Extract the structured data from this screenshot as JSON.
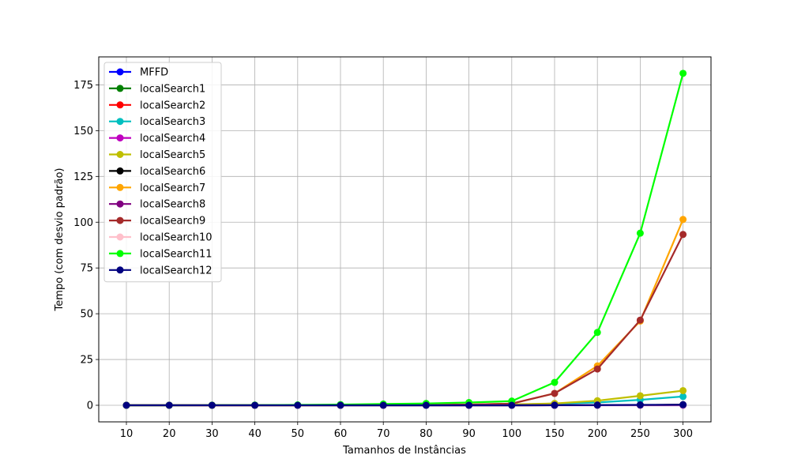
{
  "chart_data": {
    "type": "line",
    "title": "",
    "xlabel": "Tamanhos de Instâncias",
    "ylabel": "Tempo (com desvio padrão)",
    "categories": [
      "10",
      "20",
      "30",
      "40",
      "50",
      "60",
      "70",
      "80",
      "90",
      "100",
      "150",
      "200",
      "250",
      "300"
    ],
    "yticks": [
      0,
      25,
      50,
      75,
      100,
      125,
      150,
      175
    ],
    "ylim": [
      -9.06,
      190.3
    ],
    "grid": true,
    "legend_position": "upper-left",
    "series": [
      {
        "name": "MFFD",
        "color": "#0000ff",
        "values": [
          0,
          0,
          0,
          0,
          0,
          0,
          0,
          0,
          0,
          0,
          0.05,
          0.1,
          0.15,
          0.2
        ]
      },
      {
        "name": "localSearch1",
        "color": "#008000",
        "values": [
          0,
          0,
          0,
          0,
          0,
          0,
          0,
          0,
          0,
          0,
          0.05,
          0.1,
          0.15,
          0.25
        ]
      },
      {
        "name": "localSearch2",
        "color": "#ff0000",
        "values": [
          0,
          0,
          0,
          0,
          0,
          0,
          0,
          0,
          0,
          0,
          0.05,
          0.1,
          0.15,
          0.25
        ]
      },
      {
        "name": "localSearch3",
        "color": "#00bfbf",
        "values": [
          0,
          0,
          0,
          0,
          0,
          0.05,
          0.1,
          0.15,
          0.25,
          0.4,
          0.9,
          1.5,
          3.0,
          4.8
        ]
      },
      {
        "name": "localSearch4",
        "color": "#bf00bf",
        "values": [
          0,
          0,
          0,
          0,
          0,
          0,
          0,
          0,
          0,
          0,
          0,
          0,
          0,
          0
        ]
      },
      {
        "name": "localSearch5",
        "color": "#bfbf00",
        "values": [
          0,
          0,
          0,
          0,
          0,
          0.05,
          0.1,
          0.2,
          0.3,
          0.5,
          1.0,
          2.5,
          5.2,
          8.0
        ]
      },
      {
        "name": "localSearch6",
        "color": "#000000",
        "values": [
          0,
          0,
          0,
          0,
          0,
          0,
          0,
          0,
          0,
          0,
          0.05,
          0.1,
          0.15,
          0.2
        ]
      },
      {
        "name": "localSearch7",
        "color": "#ffa500",
        "values": [
          0,
          0,
          0,
          0,
          0,
          0.05,
          0.1,
          0.2,
          0.4,
          0.9,
          6.5,
          21.5,
          46.0,
          101.5
        ]
      },
      {
        "name": "localSearch8",
        "color": "#800080",
        "values": [
          0,
          0,
          0,
          0,
          0,
          0,
          0,
          0,
          0,
          0,
          0.05,
          0.1,
          0.15,
          0.2
        ]
      },
      {
        "name": "localSearch9",
        "color": "#a52a2a",
        "values": [
          0,
          0,
          0,
          0,
          0,
          0.05,
          0.1,
          0.2,
          0.4,
          0.9,
          6.5,
          19.8,
          46.5,
          93.3
        ]
      },
      {
        "name": "localSearch10",
        "color": "#ffc0cb",
        "values": [
          0,
          0,
          0,
          0,
          0,
          0,
          0,
          0,
          0,
          0,
          0.05,
          0.1,
          0.15,
          0.2
        ]
      },
      {
        "name": "localSearch11",
        "color": "#00ff00",
        "values": [
          0,
          0,
          0.05,
          0.1,
          0.2,
          0.4,
          0.7,
          1.0,
          1.5,
          2.3,
          12.5,
          39.8,
          94.0,
          181.3
        ]
      },
      {
        "name": "localSearch12",
        "color": "#000080",
        "values": [
          0,
          0,
          0,
          0,
          0,
          0,
          0,
          0,
          0,
          0,
          0.05,
          0.1,
          0.2,
          0.3
        ]
      }
    ]
  }
}
